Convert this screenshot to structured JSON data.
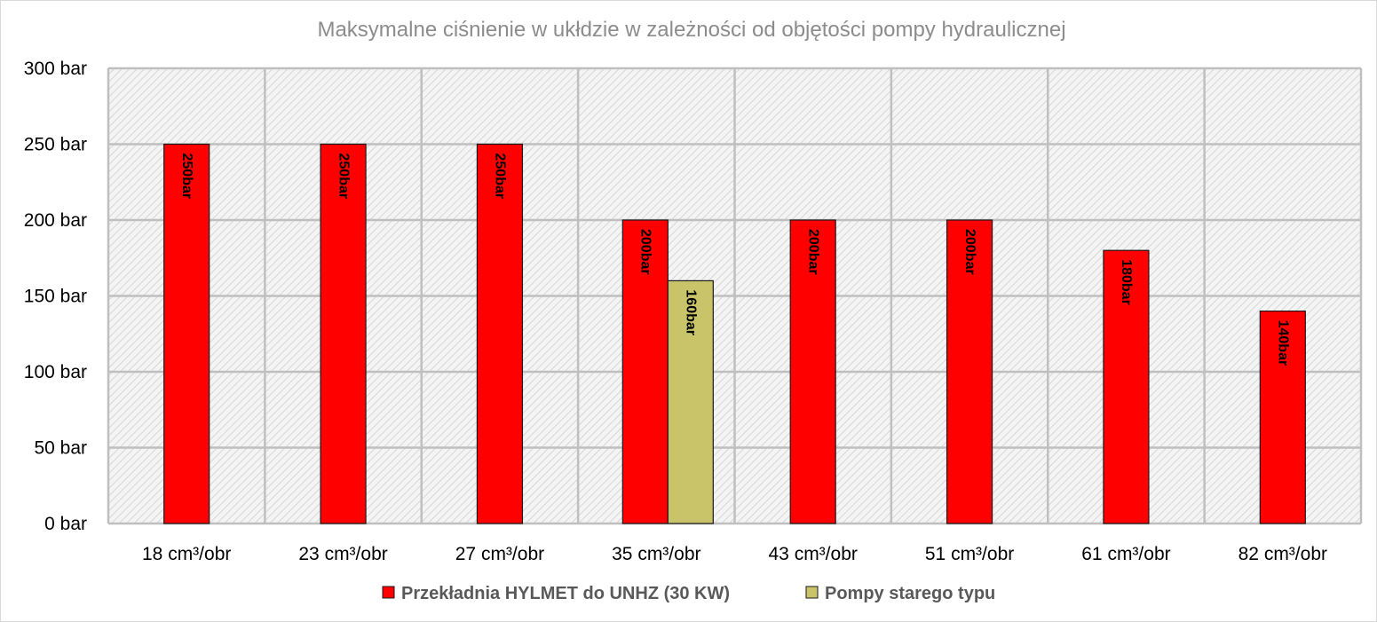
{
  "chart_data": {
    "type": "bar",
    "title": "Maksymalne ciśnienie w ukłdzie w zależności od objętości pompy hydraulicznej",
    "categories": [
      "18 cm³/obr",
      "23 cm³/obr",
      "27 cm³/obr",
      "35 cm³/obr",
      "43 cm³/obr",
      "51 cm³/obr",
      "61 cm³/obr",
      "82 cm³/obr"
    ],
    "series": [
      {
        "name": "Przekładnia HYLMET do UNHZ (30 KW)",
        "color": "#ff0000",
        "values": [
          250,
          250,
          250,
          200,
          200,
          200,
          180,
          140
        ],
        "labels": [
          "250bar",
          "250bar",
          "250bar",
          "200bar",
          "200bar",
          "200bar",
          "180bar",
          "140bar"
        ]
      },
      {
        "name": "Pompy starego typu",
        "color": "#c9c46a",
        "values": [
          null,
          null,
          null,
          160,
          null,
          null,
          null,
          null
        ],
        "labels": [
          null,
          null,
          null,
          "160bar",
          null,
          null,
          null,
          null
        ]
      }
    ],
    "ylim": [
      0,
      300
    ],
    "yticks": [
      0,
      50,
      100,
      150,
      200,
      250,
      300
    ],
    "ytick_labels": [
      "0 bar",
      "50 bar",
      "100 bar",
      "150 bar",
      "200 bar",
      "250 bar",
      "300 bar"
    ],
    "xlabel": "",
    "ylabel": "",
    "grid": true,
    "legend_position": "bottom"
  }
}
